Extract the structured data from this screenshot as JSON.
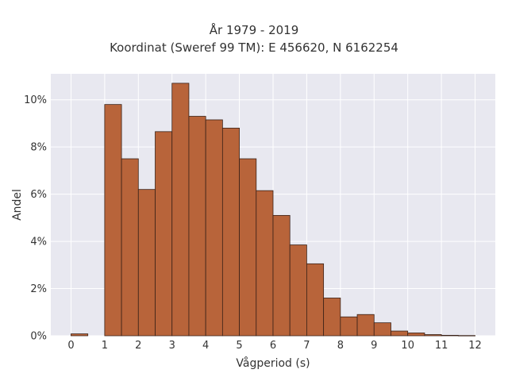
{
  "chart_data": {
    "type": "bar",
    "title": "År 1979 - 2019",
    "subtitle": "Koordinat (Sweref 99 TM): E 456620, N 6162254",
    "xlabel": "Vågperiod (s)",
    "ylabel": "Andel",
    "xlim": [
      -0.6,
      12.6
    ],
    "ylim": [
      0,
      0.111
    ],
    "xticks": [
      0,
      1,
      2,
      3,
      4,
      5,
      6,
      7,
      8,
      9,
      10,
      11,
      12
    ],
    "xtick_labels": [
      "0",
      "1",
      "2",
      "3",
      "4",
      "5",
      "6",
      "7",
      "8",
      "9",
      "10",
      "11",
      "12"
    ],
    "yticks": [
      0,
      0.02,
      0.04,
      0.06,
      0.08,
      0.1
    ],
    "ytick_labels": [
      "0%",
      "2%",
      "4%",
      "6%",
      "8%",
      "10%"
    ],
    "bin_width": 0.5,
    "bins": [
      {
        "x0": 0.0,
        "value": 0.0008
      },
      {
        "x0": 1.0,
        "value": 0.098
      },
      {
        "x0": 1.5,
        "value": 0.075
      },
      {
        "x0": 2.0,
        "value": 0.062
      },
      {
        "x0": 2.5,
        "value": 0.0865
      },
      {
        "x0": 3.0,
        "value": 0.107
      },
      {
        "x0": 3.5,
        "value": 0.093
      },
      {
        "x0": 4.0,
        "value": 0.0915
      },
      {
        "x0": 4.5,
        "value": 0.088
      },
      {
        "x0": 5.0,
        "value": 0.075
      },
      {
        "x0": 5.5,
        "value": 0.0615
      },
      {
        "x0": 6.0,
        "value": 0.051
      },
      {
        "x0": 6.5,
        "value": 0.0385
      },
      {
        "x0": 7.0,
        "value": 0.0305
      },
      {
        "x0": 7.5,
        "value": 0.016
      },
      {
        "x0": 8.0,
        "value": 0.008
      },
      {
        "x0": 8.5,
        "value": 0.009
      },
      {
        "x0": 9.0,
        "value": 0.0055
      },
      {
        "x0": 9.5,
        "value": 0.002
      },
      {
        "x0": 10.0,
        "value": 0.0012
      },
      {
        "x0": 10.5,
        "value": 0.0005
      },
      {
        "x0": 11.0,
        "value": 0.0002
      },
      {
        "x0": 11.5,
        "value": 0.0001
      }
    ],
    "grid": true,
    "colors": {
      "bar_fill": "#b8643a",
      "bar_edge": "#3a2218",
      "plot_bg": "#e8e8f0",
      "grid": "#ffffff"
    }
  }
}
